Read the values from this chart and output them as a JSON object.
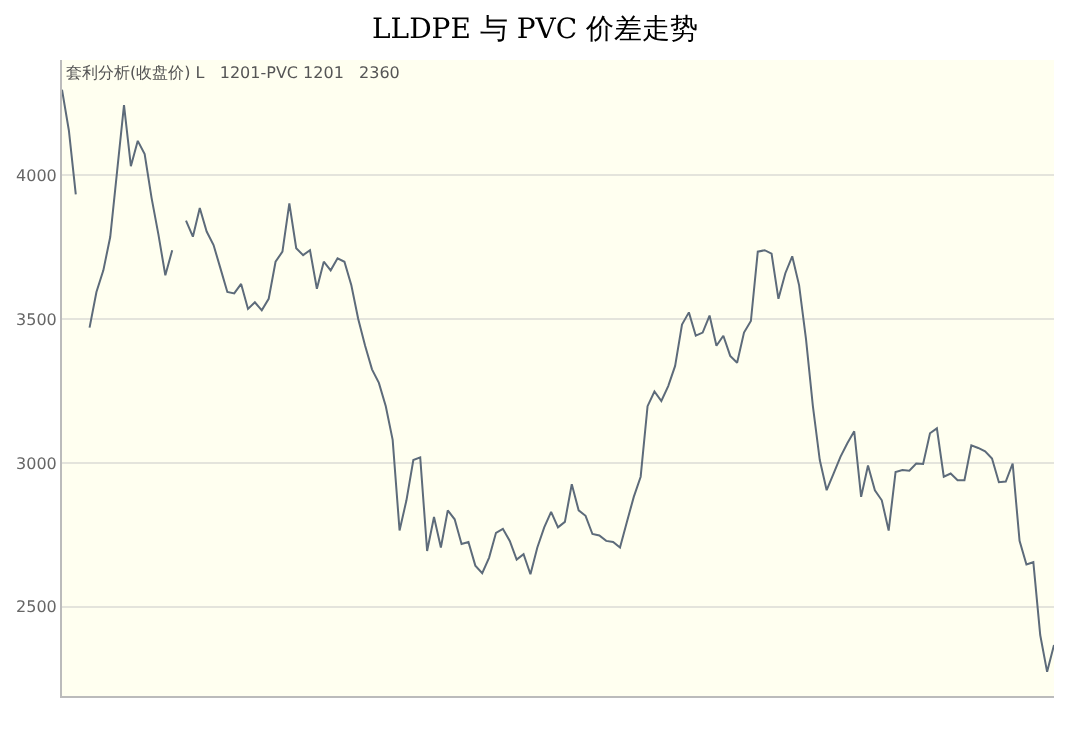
{
  "chart_data": {
    "type": "line",
    "title": "LLDPE 与 PVC 价差走势",
    "annotations": [
      "套利分析(收盘价) L   1201-PVC 1201   2360"
    ],
    "categories": [
      null,
      null,
      null,
      null,
      null,
      null,
      null,
      null,
      null,
      null,
      null,
      null,
      null,
      null,
      null,
      null,
      null,
      null,
      null,
      null,
      null,
      null,
      null,
      null,
      null,
      null,
      null,
      null,
      null,
      null,
      null,
      null,
      null,
      null,
      null,
      null,
      null,
      null,
      null,
      null,
      null,
      null,
      null,
      null,
      null,
      null,
      null,
      null,
      null,
      null,
      null,
      null,
      null,
      null,
      null,
      null,
      null,
      null,
      null,
      null,
      null,
      null,
      null,
      null,
      null,
      null,
      null,
      null,
      null,
      null,
      null,
      null,
      null,
      null,
      null,
      null,
      null,
      null,
      null,
      null,
      null,
      null,
      null,
      null,
      null,
      null,
      null,
      null,
      null,
      null,
      null,
      null,
      null,
      null,
      null,
      null,
      null,
      null,
      null,
      null,
      null,
      null,
      null,
      null,
      null,
      null,
      null,
      null,
      null,
      null,
      null,
      null,
      null,
      null,
      null,
      null,
      null,
      null,
      null,
      null,
      null,
      null,
      null,
      null,
      null,
      null,
      null,
      null,
      null,
      null,
      null,
      null,
      null,
      null,
      null,
      null,
      null,
      null,
      null,
      null,
      null,
      null,
      null,
      null,
      null
    ],
    "series": [
      {
        "color": "#5d6b7a",
        "values": [
          4297,
          4155,
          3933,
          null,
          null,
          null,
          null,
          null,
          null,
          null,
          null,
          null,
          null,
          null,
          null,
          null,
          null,
          null,
          null,
          null,
          null,
          null,
          null,
          null,
          null,
          null,
          null,
          null,
          null,
          null,
          null,
          null,
          null,
          null,
          null,
          null,
          null,
          null,
          null,
          null,
          null,
          null,
          null,
          null,
          null,
          null,
          null,
          null,
          null,
          null,
          null,
          null,
          null,
          null,
          null,
          null,
          null,
          null,
          null,
          null,
          null,
          null,
          null,
          null,
          null,
          null,
          null,
          null,
          null,
          null,
          null,
          null,
          null,
          null,
          null,
          null,
          null,
          null,
          null,
          null,
          null,
          null,
          null,
          null,
          null,
          null,
          null,
          null,
          null,
          null,
          null,
          null,
          null,
          null,
          null,
          null,
          null,
          null,
          null,
          null,
          null,
          null,
          null,
          null,
          null,
          null,
          null,
          null,
          null,
          null,
          null,
          null,
          null,
          null,
          null,
          null,
          null,
          null,
          null,
          null,
          null,
          null,
          null,
          null,
          null,
          null,
          null,
          null,
          null,
          null,
          null,
          null,
          null,
          null,
          null,
          null,
          null,
          null,
          null,
          null,
          null,
          null,
          null,
          null,
          null
        ]
      },
      {
        "color": "#5d6b7a",
        "values": [
          null,
          null,
          null,
          null,
          3470,
          3594,
          3669,
          3785,
          4014,
          4243,
          4031,
          4119,
          4073,
          3921,
          3793,
          3652,
          3739,
          null,
          null,
          null,
          null,
          null,
          null,
          null,
          null,
          null,
          null,
          null,
          null,
          null,
          null,
          null,
          null,
          null,
          null,
          null,
          null,
          null,
          null,
          null,
          null,
          null,
          null,
          null,
          null,
          null,
          null,
          null,
          null,
          null,
          null,
          null,
          null,
          null,
          null,
          null,
          null,
          null,
          null,
          null,
          null,
          null,
          null,
          null,
          null,
          null,
          null,
          null,
          null,
          null,
          null,
          null,
          null,
          null,
          null,
          null,
          null,
          null,
          null,
          null,
          null,
          null,
          null,
          null,
          null,
          null,
          null,
          null,
          null,
          null,
          null,
          null,
          null,
          null,
          null,
          null,
          null,
          null,
          null,
          null,
          null,
          null,
          null,
          null,
          null,
          null,
          null,
          null,
          null,
          null,
          null,
          null,
          null,
          null,
          null,
          null,
          null,
          null,
          null,
          null,
          null,
          null,
          null,
          null,
          null,
          null,
          null,
          null,
          null,
          null,
          null,
          null,
          null,
          null,
          null,
          null,
          null,
          null,
          null,
          null,
          null,
          null,
          null,
          null,
          null
        ]
      },
      {
        "color": "#5d6b7a",
        "values": [
          null,
          null,
          null,
          null,
          null,
          null,
          null,
          null,
          null,
          null,
          null,
          null,
          null,
          null,
          null,
          null,
          null,
          null,
          3842,
          3786,
          3886,
          3804,
          3757,
          3676,
          3594,
          3589,
          3622,
          3535,
          3558,
          3530,
          3570,
          3699,
          3734,
          3902,
          3746,
          3722,
          3739,
          3605,
          3699,
          3669,
          3711,
          3699,
          3617,
          3500,
          3407,
          3325,
          3278,
          3197,
          3080,
          2765,
          2870,
          3010,
          3019,
          2694,
          2812,
          2706,
          2835,
          2804,
          2718,
          2725,
          2643,
          2617,
          2671,
          2757,
          2771,
          2729,
          2664,
          2683,
          2613,
          2706,
          2776,
          2830,
          2776,
          2795,
          2926,
          2835,
          2816,
          2753,
          2748,
          2729,
          2725,
          2706,
          2795,
          2882,
          2952,
          3197,
          3248,
          3215,
          3267,
          3337,
          3481,
          3523,
          3442,
          3453,
          3512,
          3407,
          3442,
          3372,
          3348,
          3453,
          3493,
          3734,
          3739,
          3727,
          3570,
          3659,
          3718,
          3617,
          3430,
          3197,
          3010,
          2905,
          2963,
          3021,
          3068,
          3110,
          2882,
          2991,
          2905,
          2870,
          2765,
          2968,
          2975,
          2973,
          2998,
          2996,
          3103,
          3120,
          2952,
          2963,
          2940,
          2940,
          3061,
          3052,
          3040,
          3015,
          2933,
          2935,
          2998,
          2729,
          2647,
          2655,
          2402,
          2274,
          2367
        ]
      }
    ],
    "ylim": [
      2190,
      4400
    ],
    "yticks": [
      2500,
      3000,
      3500,
      4000
    ],
    "grid": "y",
    "legend": false,
    "tick_labels": "y",
    "marker": "none",
    "line_style": "solid"
  }
}
